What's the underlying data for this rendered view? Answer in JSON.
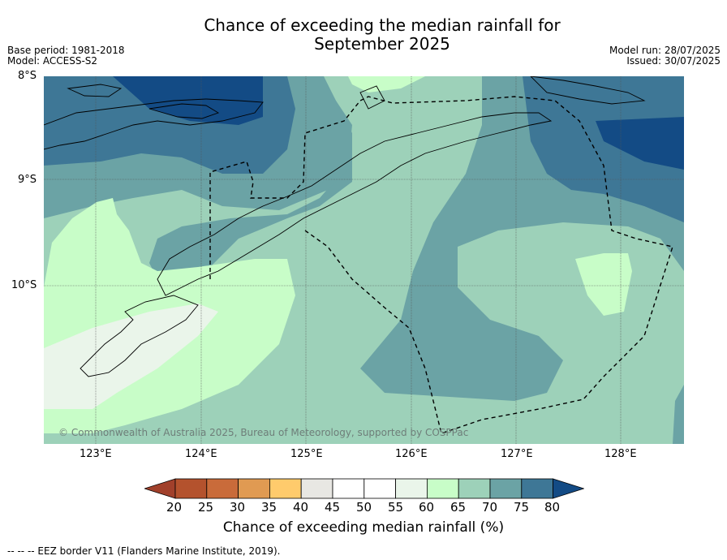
{
  "title": {
    "line1": "Chance of exceeding the median rainfall for",
    "line2": "September 2025"
  },
  "meta": {
    "base_period": "Base period: 1981-2018",
    "model": "Model: ACCESS-S2",
    "model_run": "Model run: 28/07/2025",
    "issued": "Issued: 30/07/2025"
  },
  "map": {
    "copyright": "© Commonwealth of Australia 2025, Bureau of Meteorology, supported by COSPPac",
    "lat_labels": [
      "8°S",
      "9°S",
      "10°S"
    ],
    "lon_labels": [
      "123°E",
      "124°E",
      "125°E",
      "126°E",
      "127°E",
      "128°E"
    ],
    "colors": {
      "c55_60": "#eaf5ea",
      "c60_65": "#c8fdc8",
      "c65_70": "#9dd1b9",
      "c70_75": "#6ba3a5",
      "c75_80": "#3e7796",
      "c80": "#134b85"
    }
  },
  "colorbar": {
    "title": "Chance of exceeding median rainfall (%)",
    "ticks": [
      "20",
      "25",
      "30",
      "35",
      "40",
      "45",
      "50",
      "55",
      "60",
      "65",
      "70",
      "75",
      "80"
    ],
    "colors": [
      "#a1402b",
      "#b4522d",
      "#c96b3a",
      "#e09a52",
      "#ffcb6c",
      "#e8e7e3",
      "#ffffff",
      "#ffffff",
      "#eaf5ea",
      "#c8fdc8",
      "#9dd1b9",
      "#6ba3a5",
      "#3e7796",
      "#134b85"
    ]
  },
  "footnote": "--  --  -- EEZ border V11 (Flanders Marine Institute, 2019)."
}
